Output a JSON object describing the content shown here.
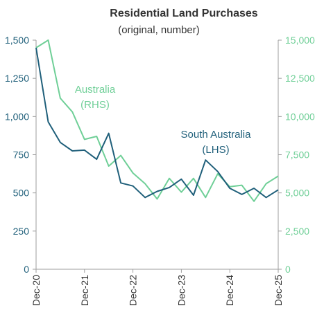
{
  "chart_data": {
    "type": "line",
    "title": "Residential Land Purchases",
    "subtitle": "(original, number)",
    "x_ticks": [
      "Dec-20",
      "Dec-21",
      "Dec-22",
      "Dec-23",
      "Dec-24",
      "Dec-25"
    ],
    "x_range": [
      "Dec-20",
      "Dec-25"
    ],
    "x_dates": [
      "Dec-20",
      "Mar-21",
      "Jun-21",
      "Sep-21",
      "Dec-21",
      "Mar-22",
      "Jun-22",
      "Sep-22",
      "Dec-22",
      "Mar-23",
      "Jun-23",
      "Sep-23",
      "Dec-23",
      "Mar-24",
      "Jun-24",
      "Sep-24",
      "Dec-24",
      "Mar-25",
      "Jun-25",
      "Sep-25",
      "Dec-25"
    ],
    "y_left": {
      "ticks": [
        "0",
        "250",
        "500",
        "750",
        "1,000",
        "1,250",
        "1,500"
      ],
      "range": [
        0,
        1500
      ]
    },
    "y_right": {
      "ticks": [
        "0",
        "2,500",
        "5,000",
        "7,500",
        "10,000",
        "12,500",
        "15,000"
      ],
      "range": [
        0,
        15000
      ]
    },
    "grid": false,
    "colors": {
      "south_australia": "#1f5f7a",
      "australia": "#6fcf97",
      "axis": "#9e9e9e",
      "title": "#333333",
      "left_ticks": "#1f5f7a",
      "right_ticks": "#6fcf97"
    },
    "series": [
      {
        "name": "South Australia",
        "axis": "left",
        "label_lines": [
          "South Australia",
          "(LHS)"
        ],
        "values": [
          1450,
          965,
          830,
          775,
          780,
          720,
          890,
          565,
          545,
          470,
          510,
          535,
          590,
          485,
          715,
          640,
          530,
          490,
          530,
          470,
          520
        ]
      },
      {
        "name": "Australia",
        "axis": "right",
        "label_lines": [
          "Australia",
          "(RHS)"
        ],
        "values": [
          14500,
          15000,
          11200,
          10300,
          8500,
          8700,
          6750,
          7450,
          6300,
          5600,
          4600,
          5950,
          5050,
          5950,
          4700,
          6250,
          5400,
          5500,
          4450,
          5600,
          6100
        ]
      }
    ]
  }
}
